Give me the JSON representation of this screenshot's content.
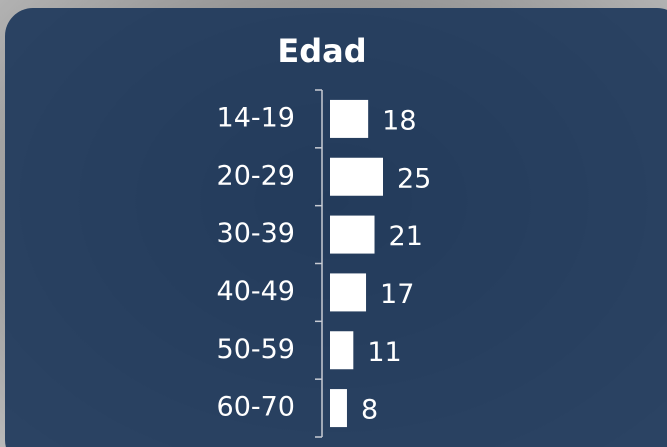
{
  "chart_data": {
    "type": "bar",
    "orientation": "horizontal",
    "title": "Edad",
    "categories": [
      "14-19",
      "20-29",
      "30-39",
      "40-49",
      "50-59",
      "60-70"
    ],
    "values": [
      18,
      25,
      21,
      17,
      11,
      8
    ],
    "color": "#ffffff"
  }
}
